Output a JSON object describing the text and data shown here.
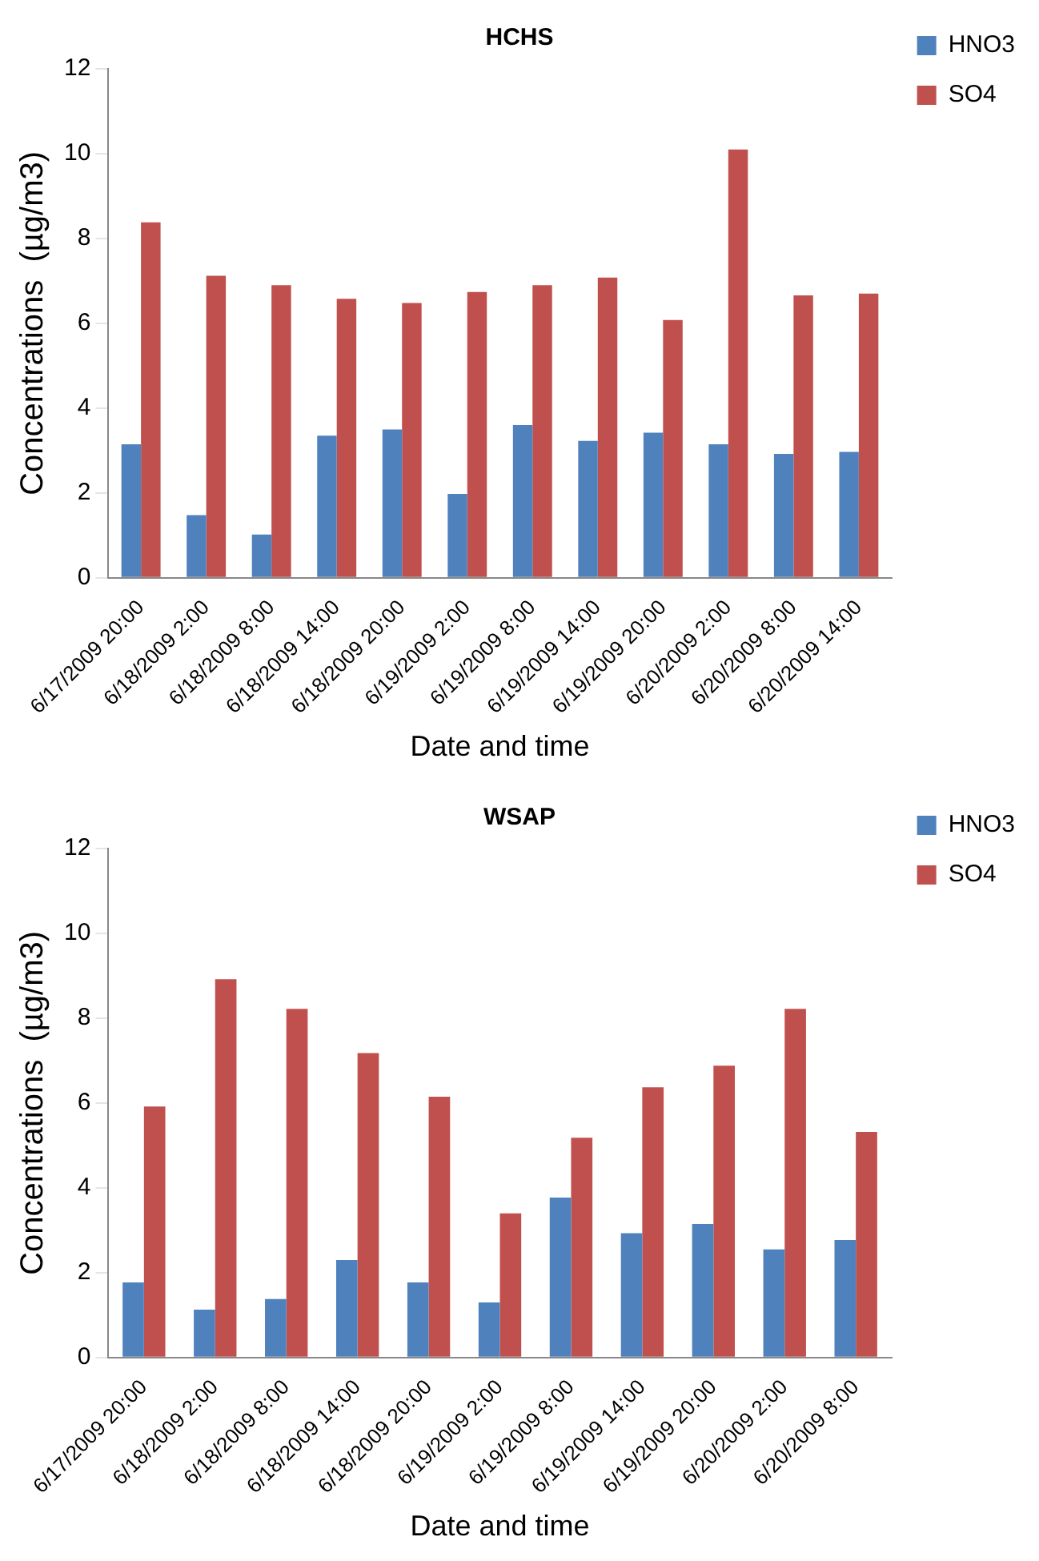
{
  "chart_data": [
    {
      "type": "bar",
      "title": "HCHS",
      "xlabel": "Date and time",
      "ylabel": "Concentrations  (µg/m3)",
      "categories": [
        "6/17/2009 20:00",
        "6/18/2009 2:00",
        "6/18/2009 8:00",
        "6/18/2009 14:00",
        "6/18/2009 20:00",
        "6/19/2009 2:00",
        "6/19/2009 8:00",
        "6/19/2009 14:00",
        "6/19/2009 20:00",
        "6/20/2009 2:00",
        "6/20/2009 8:00",
        "6/20/2009 14:00"
      ],
      "series": [
        {
          "name": "HNO3",
          "color": "#4f81bd",
          "values": [
            3.15,
            1.48,
            1.02,
            3.35,
            3.5,
            1.98,
            3.6,
            3.23,
            3.42,
            3.15,
            2.92,
            2.97
          ]
        },
        {
          "name": "SO4",
          "color": "#c0504d",
          "values": [
            8.38,
            7.12,
            6.9,
            6.58,
            6.48,
            6.74,
            6.9,
            7.08,
            6.08,
            10.1,
            6.66,
            6.7
          ]
        }
      ],
      "ylim": [
        0,
        12
      ],
      "yticks": [
        0,
        2,
        4,
        6,
        8,
        10,
        12
      ],
      "grid": false,
      "legend": "top right"
    },
    {
      "type": "bar",
      "title": "WSAP",
      "xlabel": "Date and time",
      "ylabel": "Concentrations  (µg/m3)",
      "categories": [
        "6/17/2009 20:00",
        "6/18/2009 2:00",
        "6/18/2009 8:00",
        "6/18/2009 14:00",
        "6/18/2009 20:00",
        "6/19/2009 2:00",
        "6/19/2009 8:00",
        "6/19/2009 14:00",
        "6/19/2009 20:00",
        "6/20/2009 2:00",
        "6/20/2009 8:00"
      ],
      "series": [
        {
          "name": "HNO3",
          "color": "#4f81bd",
          "values": [
            1.77,
            1.13,
            1.38,
            2.3,
            1.77,
            1.3,
            3.77,
            2.93,
            3.15,
            2.55,
            2.77
          ]
        },
        {
          "name": "SO4",
          "color": "#c0504d",
          "values": [
            5.92,
            8.92,
            8.22,
            7.18,
            6.15,
            3.4,
            5.18,
            6.37,
            6.88,
            8.22,
            5.32
          ]
        }
      ],
      "ylim": [
        0,
        12
      ],
      "yticks": [
        0,
        2,
        4,
        6,
        8,
        10,
        12
      ],
      "grid": false,
      "legend": "top right"
    }
  ]
}
